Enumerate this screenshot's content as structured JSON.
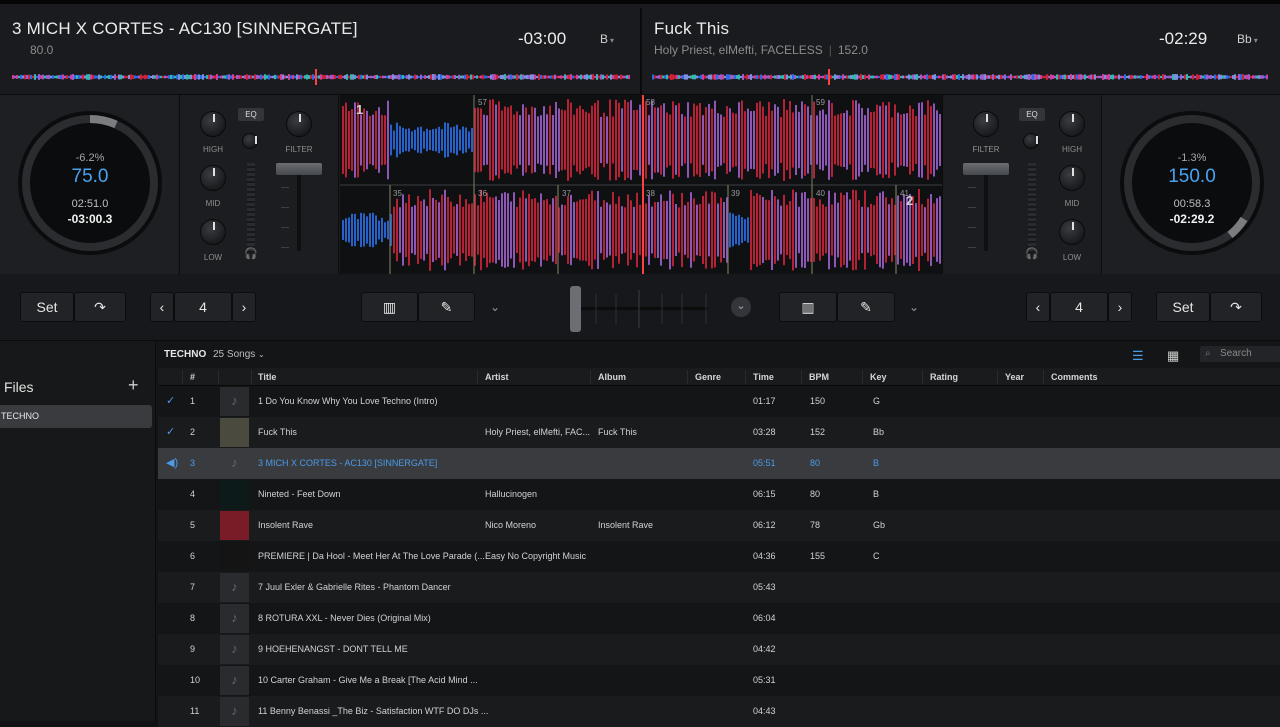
{
  "deck_left": {
    "title": "3 MICH X CORTES - AC130 [SINNERGATE]",
    "sub": "80.0",
    "time": "-03:00",
    "key": "B",
    "pitch": "-6.2%",
    "bpm": "75.0",
    "position": "02:51.0",
    "remaining": "-03:00.3",
    "deck_number": "1"
  },
  "deck_right": {
    "title": "Fuck This",
    "sub_artist": "Holy Priest, elMefti, FACELESS",
    "sub_bpm": "152.0",
    "time": "-02:29",
    "key": "Bb",
    "pitch": "-1.3%",
    "bpm": "150.0",
    "position": "00:58.3",
    "remaining": "-02:29.2",
    "deck_number": "2"
  },
  "mixer_left": {
    "eq": "EQ",
    "high": "HIGH",
    "mid": "MID",
    "low": "LOW",
    "filter": "FILTER"
  },
  "mixer_right": {
    "eq": "EQ",
    "high": "HIGH",
    "mid": "MID",
    "low": "LOW",
    "filter": "FILTER"
  },
  "beats_top": [
    "57",
    "58",
    "59"
  ],
  "beats_bottom": [
    "35",
    "36",
    "37",
    "38",
    "39",
    "40",
    "41"
  ],
  "transport": {
    "set_left": "Set",
    "loop_left": "4",
    "set_right": "Set",
    "loop_right": "4"
  },
  "sidebar": {
    "title": "Files",
    "item": "TECHNO"
  },
  "crate": {
    "name": "TECHNO",
    "count": "25 Songs",
    "search_placeholder": "Search"
  },
  "columns": [
    "#",
    "Title",
    "Artist",
    "Album",
    "Genre",
    "Time",
    "BPM",
    "Key",
    "Rating",
    "Year",
    "Comments"
  ],
  "rows": [
    {
      "num": "1",
      "title": "1 Do You Know Why You Love Techno (Intro)",
      "artist": "",
      "album": "",
      "time": "01:17",
      "bpm": "150",
      "key": "G"
    },
    {
      "num": "2",
      "title": "Fuck This",
      "artist": "Holy Priest, elMefti, FAC...",
      "album": "Fuck This",
      "time": "03:28",
      "bpm": "152",
      "key": "Bb"
    },
    {
      "num": "3",
      "title": "3 MICH X CORTES - AC130 [SINNERGATE]",
      "artist": "",
      "album": "",
      "time": "05:51",
      "bpm": "80",
      "key": "B"
    },
    {
      "num": "4",
      "title": "Nineted - Feet Down",
      "artist": "Hallucinogen",
      "album": "",
      "time": "06:15",
      "bpm": "80",
      "key": "B"
    },
    {
      "num": "5",
      "title": "Insolent Rave",
      "artist": "Nico Moreno",
      "album": "Insolent Rave",
      "time": "06:12",
      "bpm": "78",
      "key": "Gb"
    },
    {
      "num": "6",
      "title": "PREMIERE | Da Hool - Meet Her At The Love Parade (...",
      "artist": "Easy No Copyright Music",
      "album": "",
      "time": "04:36",
      "bpm": "155",
      "key": "C"
    },
    {
      "num": "7",
      "title": "7 Juul Exler & Gabrielle Rites - Phantom Dancer",
      "artist": "",
      "album": "",
      "time": "05:43",
      "bpm": "",
      "key": ""
    },
    {
      "num": "8",
      "title": "8 ROTURA XXL - Never Dies (Original Mix)",
      "artist": "",
      "album": "",
      "time": "06:04",
      "bpm": "",
      "key": ""
    },
    {
      "num": "9",
      "title": "9 HOEHENANGST - DONT TELL ME",
      "artist": "",
      "album": "",
      "time": "04:42",
      "bpm": "",
      "key": ""
    },
    {
      "num": "10",
      "title": "10 Carter Graham - Give Me a Break [The Acid Mind ...",
      "artist": "",
      "album": "",
      "time": "05:31",
      "bpm": "",
      "key": ""
    },
    {
      "num": "11",
      "title": "11 Benny Benassi _The Biz - Satisfaction WTF DO DJs ...",
      "artist": "",
      "album": "",
      "time": "04:43",
      "bpm": "",
      "key": ""
    }
  ],
  "colors": {
    "accent": "#4a9be8",
    "wave_red": "#c8233a",
    "wave_purple": "#9a5fc8",
    "wave_blue": "#2a6be0",
    "playhead": "#ff4040"
  }
}
